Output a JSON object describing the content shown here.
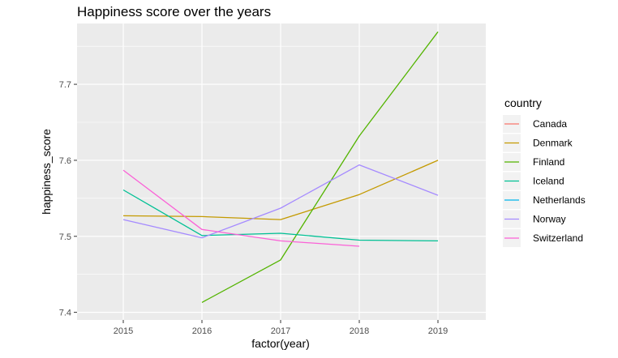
{
  "chart_data": {
    "type": "line",
    "title": "Happiness score over the years",
    "xlabel": "factor(year)",
    "ylabel": "happiness_score",
    "categories": [
      "2015",
      "2016",
      "2017",
      "2018",
      "2019"
    ],
    "ylim": [
      7.39,
      7.78
    ],
    "yticks": [
      7.4,
      7.5,
      7.6,
      7.7
    ],
    "ytick_labels": [
      "7.4",
      "7.5",
      "7.6",
      "7.7"
    ],
    "grid": true,
    "legend": {
      "title": "country",
      "position": "right"
    },
    "series": [
      {
        "name": "Canada",
        "color": "#F8766D",
        "values": [
          null,
          null,
          null,
          null,
          null
        ]
      },
      {
        "name": "Denmark",
        "color": "#C49A00",
        "values": [
          7.527,
          7.526,
          7.522,
          7.555,
          7.6
        ]
      },
      {
        "name": "Finland",
        "color": "#53B400",
        "values": [
          null,
          7.413,
          7.469,
          7.632,
          7.769
        ]
      },
      {
        "name": "Iceland",
        "color": "#00C094",
        "values": [
          7.561,
          7.501,
          7.504,
          7.495,
          7.494
        ]
      },
      {
        "name": "Netherlands",
        "color": "#00B6EB",
        "values": [
          null,
          null,
          null,
          null,
          null
        ]
      },
      {
        "name": "Norway",
        "color": "#A58AFF",
        "values": [
          7.522,
          7.498,
          7.537,
          7.594,
          7.554
        ]
      },
      {
        "name": "Switzerland",
        "color": "#FB61D7",
        "values": [
          7.587,
          7.509,
          7.494,
          7.487,
          null
        ]
      }
    ]
  }
}
